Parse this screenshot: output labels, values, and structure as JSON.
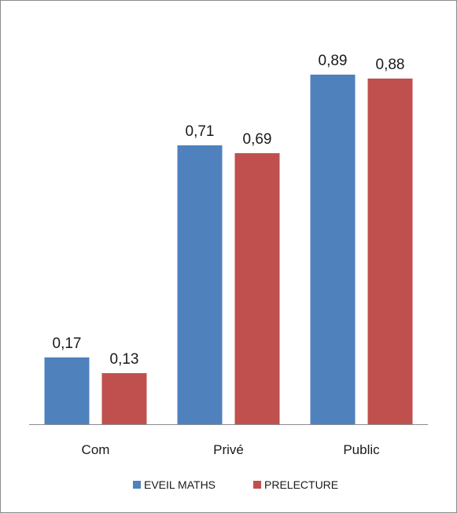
{
  "chart_data": {
    "type": "bar",
    "categories": [
      "Com",
      "Privé",
      "Public"
    ],
    "series": [
      {
        "name": "EVEIL MATHS",
        "values": [
          0.17,
          0.71,
          0.89
        ],
        "labels": [
          "0,17",
          "0,71",
          "0,89"
        ],
        "color": "#4f81bd"
      },
      {
        "name": "PRELECTURE",
        "values": [
          0.13,
          0.69,
          0.88
        ],
        "labels": [
          "0,13",
          "0,69",
          "0,88"
        ],
        "color": "#c0504d"
      }
    ],
    "ylim": [
      0,
      1
    ],
    "grid": false,
    "legend_position": "bottom",
    "title": "",
    "xlabel": "",
    "ylabel": ""
  }
}
